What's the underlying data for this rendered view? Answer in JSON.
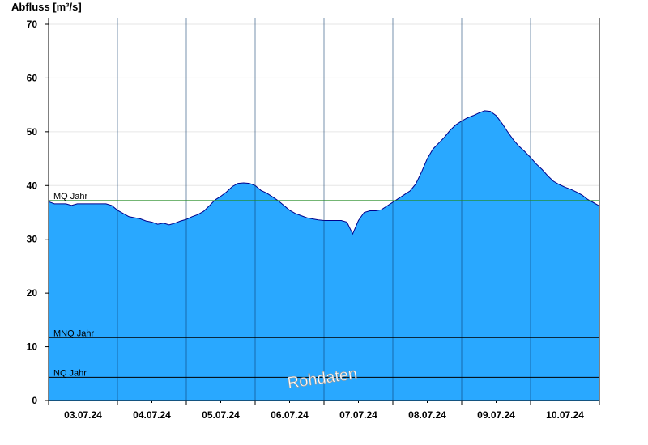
{
  "chart_data": {
    "type": "area",
    "ylabel": "Abfluss [m³/s]",
    "xlabel": "",
    "title": "",
    "ylim": [
      0,
      70
    ],
    "y_ticks": [
      0,
      10,
      20,
      30,
      40,
      50,
      60,
      70
    ],
    "x_range": [
      "2024-07-02T12:00",
      "2024-07-10T12:00"
    ],
    "x_tick_labels": [
      "03.07.24",
      "04.07.24",
      "05.07.24",
      "06.07.24",
      "07.07.24",
      "08.07.24",
      "09.07.24",
      "10.07.24"
    ],
    "grid": "horizontal",
    "fill_color": "#29a8ff",
    "line_color": "#00008b",
    "series": [
      {
        "name": "",
        "x": [
          0,
          1,
          2,
          3,
          4,
          5,
          6,
          7,
          8,
          9,
          10,
          11,
          12,
          13,
          14,
          15,
          16,
          17,
          18,
          19,
          20,
          21,
          22,
          23,
          24,
          25,
          26,
          27,
          28,
          29,
          30,
          31,
          32,
          33,
          34,
          35,
          36,
          37,
          38,
          39,
          40,
          41,
          42,
          43,
          44,
          45,
          46,
          47,
          48,
          49,
          50,
          51,
          52,
          53,
          54,
          55,
          56,
          57,
          58,
          59,
          60,
          61,
          62,
          63,
          64,
          65,
          66,
          67,
          68,
          69,
          70,
          71,
          72,
          73,
          74,
          75,
          76,
          77,
          78,
          79,
          80,
          81,
          82,
          83,
          84,
          85,
          86,
          87,
          88,
          89,
          90,
          91,
          92,
          93,
          94,
          95,
          96
        ],
        "x_unit": "hours since 02.07.24 12:00 (x 2)",
        "x_dates": [
          "02.07.24 12:00",
          "02.07.24 14:00",
          "02.07.24 16:00",
          "02.07.24 18:00",
          "02.07.24 20:00",
          "02.07.24 22:00",
          "03.07.24 00:00",
          "03.07.24 02:00",
          "03.07.24 04:00",
          "03.07.24 06:00",
          "03.07.24 08:00",
          "03.07.24 10:00",
          "03.07.24 12:00",
          "03.07.24 14:00",
          "03.07.24 16:00",
          "03.07.24 18:00",
          "03.07.24 20:00",
          "03.07.24 22:00",
          "04.07.24 00:00",
          "04.07.24 02:00",
          "04.07.24 04:00",
          "04.07.24 06:00",
          "04.07.24 08:00",
          "04.07.24 10:00",
          "04.07.24 12:00",
          "04.07.24 14:00",
          "04.07.24 16:00",
          "04.07.24 18:00",
          "04.07.24 20:00",
          "04.07.24 22:00",
          "05.07.24 00:00",
          "05.07.24 02:00",
          "05.07.24 04:00",
          "05.07.24 06:00",
          "05.07.24 08:00",
          "05.07.24 10:00",
          "05.07.24 12:00",
          "05.07.24 14:00",
          "05.07.24 16:00",
          "05.07.24 18:00",
          "05.07.24 20:00",
          "05.07.24 22:00",
          "06.07.24 00:00",
          "06.07.24 02:00",
          "06.07.24 04:00",
          "06.07.24 06:00",
          "06.07.24 08:00",
          "06.07.24 10:00",
          "06.07.24 12:00",
          "06.07.24 14:00",
          "06.07.24 16:00",
          "06.07.24 18:00",
          "06.07.24 20:00",
          "06.07.24 22:00",
          "07.07.24 00:00",
          "07.07.24 02:00",
          "07.07.24 04:00",
          "07.07.24 06:00",
          "07.07.24 08:00",
          "07.07.24 10:00",
          "07.07.24 12:00",
          "07.07.24 14:00",
          "07.07.24 16:00",
          "07.07.24 18:00",
          "07.07.24 20:00",
          "07.07.24 22:00",
          "08.07.24 00:00",
          "08.07.24 02:00",
          "08.07.24 04:00",
          "08.07.24 06:00",
          "08.07.24 08:00",
          "08.07.24 10:00",
          "08.07.24 12:00",
          "08.07.24 14:00",
          "08.07.24 16:00",
          "08.07.24 18:00",
          "08.07.24 20:00",
          "08.07.24 22:00",
          "09.07.24 00:00",
          "09.07.24 02:00",
          "09.07.24 04:00",
          "09.07.24 06:00",
          "09.07.24 08:00",
          "09.07.24 10:00",
          "09.07.24 12:00",
          "09.07.24 14:00",
          "09.07.24 16:00",
          "09.07.24 18:00",
          "09.07.24 20:00",
          "09.07.24 22:00",
          "10.07.24 00:00",
          "10.07.24 02:00",
          "10.07.24 04:00",
          "10.07.24 06:00",
          "10.07.24 08:00",
          "10.07.24 10:00",
          "10.07.24 12:00"
        ],
        "values": [
          37,
          36.6,
          36.6,
          36.6,
          36.3,
          36.6,
          36.6,
          36.6,
          36.6,
          36.6,
          36.6,
          36.3,
          35.4,
          34.8,
          34.2,
          34,
          33.8,
          33.4,
          33.2,
          32.8,
          33.0,
          32.7,
          33.0,
          33.4,
          33.7,
          34.2,
          34.6,
          35.2,
          36.2,
          37.3,
          38.0,
          38.8,
          39.8,
          40.4,
          40.5,
          40.4,
          40.0,
          39.1,
          38.6,
          37.9,
          37.2,
          36.3,
          35.4,
          34.8,
          34.4,
          34.0,
          33.8,
          33.6,
          33.5,
          33.5,
          33.5,
          33.5,
          33.2,
          31.0,
          33.5,
          35.0,
          35.3,
          35.3,
          35.5,
          36.2,
          36.9,
          37.6,
          38.3,
          39.0,
          40.3,
          42.5,
          45.0,
          46.8,
          47.9,
          49.0,
          50.3,
          51.3,
          52.0,
          52.6,
          53.0,
          53.5,
          53.9,
          53.8,
          53.0,
          51.6,
          50.0,
          48.5,
          47.3,
          46.3,
          45.2,
          44.0,
          43.0,
          41.8,
          40.8,
          40.2,
          39.7,
          39.3,
          38.8,
          38.2,
          37.4,
          36.8,
          36.2
        ]
      }
    ],
    "reference_lines": [
      {
        "label": "MQ Jahr",
        "value": 37.2,
        "color": "#228b22"
      },
      {
        "label": "MNQ Jahr",
        "value": 11.7,
        "color": "#000000"
      },
      {
        "label": "NQ Jahr",
        "value": 4.3,
        "color": "#000000"
      }
    ],
    "watermark": "Rohdaten"
  }
}
